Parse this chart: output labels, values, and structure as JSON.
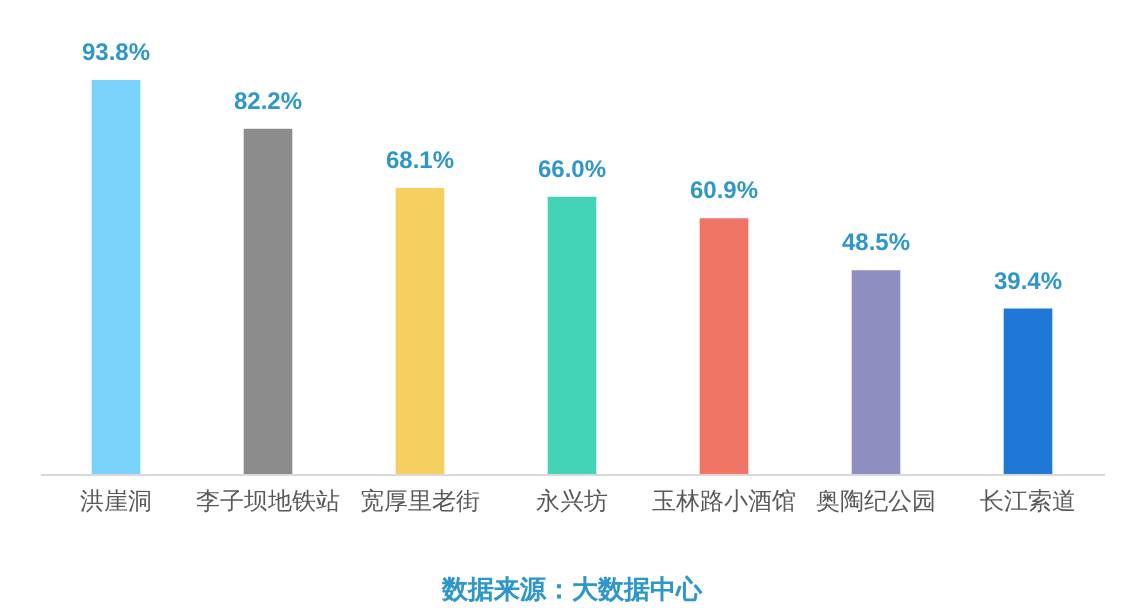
{
  "chart_data": {
    "type": "bar",
    "categories": [
      "洪崖洞",
      "李子坝地铁站",
      "宽厚里老街",
      "永兴坊",
      "玉林路小酒馆",
      "奥陶纪公园",
      "长江索道"
    ],
    "values": [
      93.8,
      82.2,
      68.1,
      66.0,
      60.9,
      48.5,
      39.4
    ],
    "colors": [
      "#7ad3fb",
      "#8c8c8c",
      "#f5d061",
      "#43d3b6",
      "#f07565",
      "#8e8fc0",
      "#1f78d6"
    ],
    "value_labels": [
      "93.8%",
      "82.2%",
      "68.1%",
      "66.0%",
      "60.9%",
      "48.5%",
      "39.4%"
    ],
    "annotations": [
      "数据来源：大数据中心"
    ],
    "grid": false,
    "legend": false
  }
}
